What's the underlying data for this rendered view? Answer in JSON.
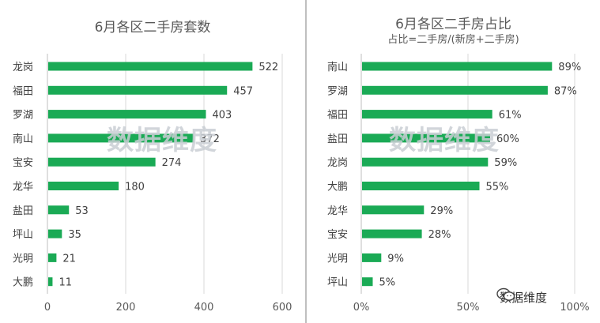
{
  "colors": {
    "bar": "#1aaa55",
    "grid": "#d9d9d9",
    "axis": "#bfbfbf"
  },
  "watermark_text": "数据维度",
  "brand": {
    "label": "数据维度",
    "icon": "wechat-icon"
  },
  "chart_data": [
    {
      "type": "bar",
      "orientation": "horizontal",
      "title": "6月各区二手房套数",
      "subtitle": "",
      "categories": [
        "龙岗",
        "福田",
        "罗湖",
        "南山",
        "宝安",
        "龙华",
        "盐田",
        "坪山",
        "光明",
        "大鹏"
      ],
      "values": [
        522,
        457,
        403,
        372,
        274,
        180,
        53,
        35,
        21,
        11
      ],
      "value_labels": [
        "522",
        "457",
        "403",
        "372",
        "274",
        "180",
        "53",
        "35",
        "21",
        "11"
      ],
      "xlim": [
        0,
        600
      ],
      "ticks": [
        0,
        200,
        400,
        600
      ],
      "tick_labels": [
        "0",
        "200",
        "400",
        "600"
      ],
      "grid": true
    },
    {
      "type": "bar",
      "orientation": "horizontal",
      "title": "6月各区二手房占比",
      "subtitle": "占比=二手房/(新房+二手房)",
      "categories": [
        "南山",
        "罗湖",
        "福田",
        "盐田",
        "龙岗",
        "大鹏",
        "龙华",
        "宝安",
        "光明",
        "坪山"
      ],
      "values": [
        0.89,
        0.87,
        0.61,
        0.6,
        0.59,
        0.55,
        0.29,
        0.28,
        0.09,
        0.05
      ],
      "value_labels": [
        "89%",
        "87%",
        "61%",
        "60%",
        "59%",
        "55%",
        "29%",
        "28%",
        "9%",
        "5%"
      ],
      "xlim": [
        0,
        1.0
      ],
      "ticks": [
        0,
        0.5,
        1.0
      ],
      "tick_labels": [
        "0%",
        "50%",
        "100%"
      ],
      "grid": true
    }
  ]
}
